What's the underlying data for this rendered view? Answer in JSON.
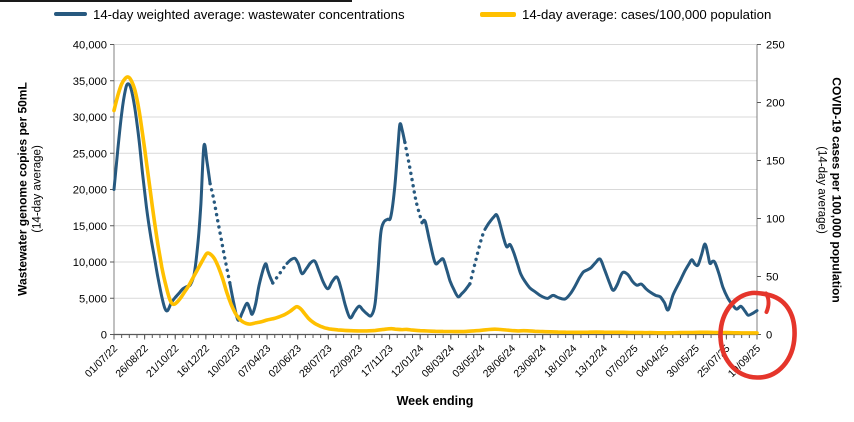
{
  "legend": {
    "items": [
      {
        "id": "wastewater",
        "label": "14-day weighted average: wastewater concentrations",
        "color": "#27597F"
      },
      {
        "id": "cases",
        "label": "14-day average: cases/100,000 population",
        "color": "#FFC000"
      }
    ]
  },
  "chart_data": {
    "type": "line",
    "x_axis": {
      "title": "Week ending",
      "range_weeks": [
        0,
        168
      ],
      "tick_label_interval_weeks": 8,
      "minor_tick_interval_weeks": 2,
      "tick_labels": [
        "01/07/22",
        "26/08/22",
        "21/10/22",
        "16/12/22",
        "10/02/23",
        "07/04/23",
        "02/06/23",
        "28/07/23",
        "22/09/23",
        "17/11/23",
        "12/01/24",
        "08/03/24",
        "03/05/24",
        "28/06/24",
        "23/08/24",
        "18/10/24",
        "13/12/24",
        "07/02/25",
        "04/04/25",
        "30/05/25",
        "25/07/25",
        "19/09/25"
      ]
    },
    "y_axis_left": {
      "title": "Wastewater genome copies per 50mL",
      "subtitle": "(14-day average)",
      "range": [
        0,
        40000
      ],
      "tick_step": 5000,
      "tick_labels": [
        "0",
        "5,000",
        "10,000",
        "15,000",
        "20,000",
        "25,000",
        "30,000",
        "35,000",
        "40,000"
      ]
    },
    "y_axis_right": {
      "title": "COVID-19 cases per 100,000 population",
      "subtitle": "(14-day average)",
      "range": [
        0,
        250
      ],
      "tick_step": 50,
      "tick_labels": [
        "0",
        "50",
        "100",
        "150",
        "200",
        "250"
      ]
    },
    "grid": "horizontal",
    "series": [
      {
        "name": "14-day weighted average: wastewater concentrations",
        "axis": "left",
        "color": "#27597F",
        "style": "solid-with-dotted-gap-segments",
        "dotted_week_ranges": [
          [
            25.1,
            30.3
          ],
          [
            41.5,
            45.2
          ],
          [
            76,
            80.5
          ],
          [
            93,
            96.9
          ]
        ],
        "points": [
          [
            0,
            20000
          ],
          [
            1,
            25500
          ],
          [
            2,
            30500
          ],
          [
            3,
            33800
          ],
          [
            3.7,
            34600
          ],
          [
            4.5,
            33800
          ],
          [
            5.5,
            31000
          ],
          [
            6.5,
            27000
          ],
          [
            7.5,
            22000
          ],
          [
            8.5,
            17500
          ],
          [
            9.5,
            13800
          ],
          [
            10.5,
            10800
          ],
          [
            11.5,
            7800
          ],
          [
            12.5,
            5200
          ],
          [
            13.3,
            3600
          ],
          [
            14,
            3300
          ],
          [
            15,
            4400
          ],
          [
            16,
            5100
          ],
          [
            17,
            5700
          ],
          [
            18,
            6300
          ],
          [
            19,
            6600
          ],
          [
            20,
            6900
          ],
          [
            21,
            8500
          ],
          [
            22,
            13000
          ],
          [
            22.7,
            18000
          ],
          [
            23.5,
            26000
          ],
          [
            24.3,
            23800
          ],
          [
            25.1,
            20800
          ],
          [
            26,
            18800
          ],
          [
            27,
            16000
          ],
          [
            28,
            13200
          ],
          [
            29,
            10400
          ],
          [
            30.3,
            7000
          ],
          [
            31.3,
            4300
          ],
          [
            32.4,
            2000
          ],
          [
            33.5,
            3000
          ],
          [
            34.7,
            4300
          ],
          [
            35.5,
            3500
          ],
          [
            36.1,
            2800
          ],
          [
            37,
            4200
          ],
          [
            38,
            7000
          ],
          [
            39.5,
            9700
          ],
          [
            40.2,
            8800
          ],
          [
            40.8,
            7900
          ],
          [
            41.5,
            7100
          ],
          [
            43,
            8200
          ],
          [
            44.2,
            9100
          ],
          [
            45.2,
            9800
          ],
          [
            46.2,
            10300
          ],
          [
            47.3,
            10500
          ],
          [
            48.2,
            9700
          ],
          [
            49.1,
            8400
          ],
          [
            50.3,
            9100
          ],
          [
            51.4,
            9900
          ],
          [
            52.5,
            10100
          ],
          [
            53.6,
            8700
          ],
          [
            54.7,
            7200
          ],
          [
            55.9,
            6300
          ],
          [
            57,
            7300
          ],
          [
            58.3,
            7900
          ],
          [
            59.4,
            6200
          ],
          [
            60.5,
            3900
          ],
          [
            61.7,
            2300
          ],
          [
            62.8,
            3100
          ],
          [
            64,
            3900
          ],
          [
            65,
            3400
          ],
          [
            66,
            2900
          ],
          [
            67.2,
            2600
          ],
          [
            68.2,
            4200
          ],
          [
            69,
            9000
          ],
          [
            69.7,
            14000
          ],
          [
            70.5,
            15500
          ],
          [
            71.5,
            15900
          ],
          [
            72.3,
            16200
          ],
          [
            73.3,
            20000
          ],
          [
            74.2,
            26000
          ],
          [
            74.7,
            29000
          ],
          [
            75.3,
            28200
          ],
          [
            76,
            26500
          ],
          [
            77,
            23800
          ],
          [
            78,
            21000
          ],
          [
            79,
            18200
          ],
          [
            80.5,
            15400
          ],
          [
            81.3,
            15600
          ],
          [
            82.5,
            12800
          ],
          [
            83.9,
            9900
          ],
          [
            85,
            10100
          ],
          [
            86,
            10400
          ],
          [
            87,
            8800
          ],
          [
            87.8,
            7400
          ],
          [
            88.8,
            6200
          ],
          [
            89.9,
            5200
          ],
          [
            90.8,
            5600
          ],
          [
            91.7,
            6100
          ],
          [
            93,
            7000
          ],
          [
            94.5,
            10200
          ],
          [
            96,
            13200
          ],
          [
            96.9,
            14500
          ],
          [
            98,
            15400
          ],
          [
            99.2,
            16200
          ],
          [
            100,
            16500
          ],
          [
            100.8,
            15300
          ],
          [
            101.8,
            13300
          ],
          [
            102.6,
            12100
          ],
          [
            103.5,
            12400
          ],
          [
            104.5,
            11200
          ],
          [
            105.5,
            9600
          ],
          [
            106.3,
            8300
          ],
          [
            107.4,
            7300
          ],
          [
            108.7,
            6400
          ],
          [
            110,
            5900
          ],
          [
            111.3,
            5400
          ],
          [
            112.4,
            5100
          ],
          [
            113.4,
            5000
          ],
          [
            114.7,
            5400
          ],
          [
            116,
            5100
          ],
          [
            117.8,
            4900
          ],
          [
            119.2,
            5600
          ],
          [
            120.4,
            6600
          ],
          [
            121.6,
            7800
          ],
          [
            122.6,
            8600
          ],
          [
            123.6,
            8900
          ],
          [
            124.6,
            9200
          ],
          [
            125.8,
            9900
          ],
          [
            127,
            10400
          ],
          [
            128.2,
            8900
          ],
          [
            129.4,
            7200
          ],
          [
            130.4,
            6100
          ],
          [
            131.5,
            6900
          ],
          [
            132.8,
            8500
          ],
          [
            134.2,
            8300
          ],
          [
            135.5,
            7300
          ],
          [
            136.6,
            6800
          ],
          [
            137.8,
            6950
          ],
          [
            139,
            6300
          ],
          [
            140.2,
            5800
          ],
          [
            141.5,
            5400
          ],
          [
            142.7,
            5200
          ],
          [
            143.8,
            4400
          ],
          [
            144.8,
            3400
          ],
          [
            146.1,
            5500
          ],
          [
            147.9,
            7400
          ],
          [
            149.2,
            8800
          ],
          [
            150.3,
            9800
          ],
          [
            151,
            10300
          ],
          [
            151.8,
            9700
          ],
          [
            152.6,
            9600
          ],
          [
            153.5,
            11000
          ],
          [
            154.4,
            12480
          ],
          [
            155.2,
            11000
          ],
          [
            155.7,
            9800
          ],
          [
            156.4,
            10100
          ],
          [
            157,
            9930
          ],
          [
            158,
            8500
          ],
          [
            159.1,
            6520
          ],
          [
            160.4,
            5000
          ],
          [
            161.7,
            4020
          ],
          [
            162.7,
            3500
          ],
          [
            163.8,
            3890
          ],
          [
            164.9,
            3200
          ],
          [
            165.7,
            2660
          ],
          [
            166.8,
            2900
          ],
          [
            168,
            3300
          ]
        ]
      },
      {
        "name": "14-day average: cases/100,000 population",
        "axis": "right",
        "color": "#FFC000",
        "style": "solid",
        "points": [
          [
            0,
            193
          ],
          [
            1,
            206
          ],
          [
            2,
            216
          ],
          [
            3,
            221
          ],
          [
            3.7,
            222
          ],
          [
            4.5,
            219
          ],
          [
            5.5,
            210
          ],
          [
            6.5,
            194
          ],
          [
            7.5,
            172
          ],
          [
            8.5,
            148
          ],
          [
            9.5,
            123
          ],
          [
            10.5,
            99
          ],
          [
            11.5,
            77
          ],
          [
            12.5,
            58
          ],
          [
            13.5,
            43
          ],
          [
            14.6,
            30
          ],
          [
            15.5,
            26
          ],
          [
            16.5,
            28
          ],
          [
            17.5,
            32
          ],
          [
            18.5,
            37
          ],
          [
            19.5,
            42
          ],
          [
            20.5,
            48
          ],
          [
            21.5,
            54
          ],
          [
            22.5,
            60
          ],
          [
            23.5,
            66
          ],
          [
            24.3,
            70
          ],
          [
            25.3,
            69
          ],
          [
            26.3,
            65
          ],
          [
            27.3,
            58
          ],
          [
            28.4,
            48
          ],
          [
            29.5,
            36
          ],
          [
            30.6,
            26
          ],
          [
            31.6,
            19
          ],
          [
            32.6,
            14
          ],
          [
            33.6,
            11
          ],
          [
            34.6,
            9.5
          ],
          [
            35.6,
            9
          ],
          [
            37,
            10
          ],
          [
            38.5,
            11
          ],
          [
            40,
            12.5
          ],
          [
            41.5,
            13.5
          ],
          [
            43,
            15
          ],
          [
            44.5,
            17
          ],
          [
            46,
            20
          ],
          [
            47,
            22.5
          ],
          [
            47.8,
            24
          ],
          [
            48.8,
            22
          ],
          [
            49.8,
            18
          ],
          [
            50.8,
            14
          ],
          [
            51.8,
            11
          ],
          [
            53,
            8.5
          ],
          [
            54,
            7
          ],
          [
            55,
            5.8
          ],
          [
            56,
            5
          ],
          [
            57,
            4.5
          ],
          [
            58.5,
            4
          ],
          [
            60,
            3.6
          ],
          [
            62,
            3.3
          ],
          [
            64,
            3.1
          ],
          [
            66,
            3.1
          ],
          [
            68,
            3.4
          ],
          [
            70,
            4.2
          ],
          [
            71.5,
            4.8
          ],
          [
            72.5,
            5
          ],
          [
            73.5,
            4.6
          ],
          [
            75,
            4.2
          ],
          [
            76.5,
            4.4
          ],
          [
            78,
            3.8
          ],
          [
            80,
            3.3
          ],
          [
            82,
            3
          ],
          [
            84,
            2.8
          ],
          [
            86,
            2.7
          ],
          [
            88,
            2.6
          ],
          [
            90,
            2.5
          ],
          [
            92,
            2.7
          ],
          [
            94,
            3.1
          ],
          [
            96,
            3.6
          ],
          [
            98,
            4.3
          ],
          [
            99.5,
            4.6
          ],
          [
            101,
            4.3
          ],
          [
            102.5,
            3.9
          ],
          [
            104,
            3.4
          ],
          [
            105.5,
            3.1
          ],
          [
            107,
            3.3
          ],
          [
            108.5,
            3.1
          ],
          [
            110,
            2.8
          ],
          [
            112,
            2.5
          ],
          [
            114,
            2.3
          ],
          [
            116,
            2.1
          ],
          [
            118,
            2
          ],
          [
            120,
            1.9
          ],
          [
            122,
            1.9
          ],
          [
            124,
            2
          ],
          [
            126,
            2.1
          ],
          [
            128,
            2
          ],
          [
            130,
            1.9
          ],
          [
            132,
            1.9
          ],
          [
            134,
            1.8
          ],
          [
            136,
            1.7
          ],
          [
            138,
            1.6
          ],
          [
            140,
            1.6
          ],
          [
            142,
            1.5
          ],
          [
            144,
            1.5
          ],
          [
            146,
            1.5
          ],
          [
            148,
            1.6
          ],
          [
            150,
            1.7
          ],
          [
            152,
            1.8
          ],
          [
            154,
            1.9
          ],
          [
            156,
            1.8
          ],
          [
            158,
            1.7
          ],
          [
            160,
            1.6
          ],
          [
            162,
            1.5
          ],
          [
            164,
            1.4
          ],
          [
            166,
            1.4
          ],
          [
            168,
            1.4
          ]
        ]
      }
    ],
    "annotation": {
      "type": "hand-drawn-circle",
      "color": "#E5352B",
      "around": "final weeks of wastewater series, right-axis 0 label and 19/09/25 x-axis label"
    }
  }
}
